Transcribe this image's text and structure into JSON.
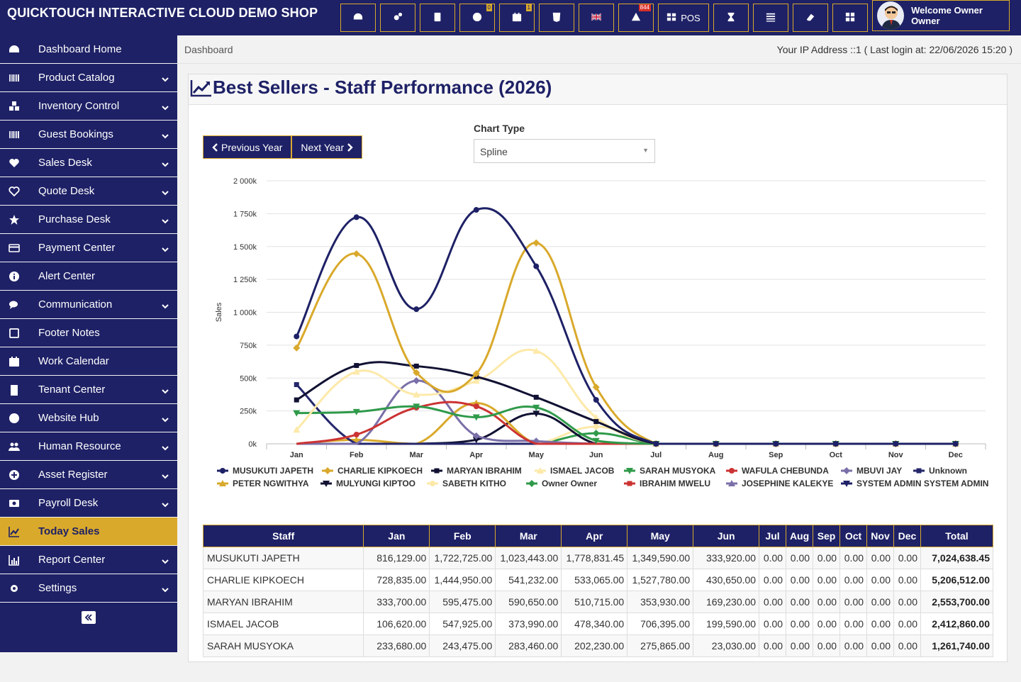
{
  "app": {
    "brand": "QUICKTOUCH INTERACTIVE CLOUD DEMO SHOP"
  },
  "topbar": {
    "buttons": [
      {
        "icon": "dashboard-icon",
        "label": "",
        "badge": ""
      },
      {
        "icon": "cogs-icon",
        "label": "",
        "badge": ""
      },
      {
        "icon": "calculator-icon",
        "label": "",
        "badge": ""
      },
      {
        "icon": "info-icon",
        "label": "",
        "badge": "0"
      },
      {
        "icon": "calendar-icon",
        "label": "",
        "badge": "1"
      },
      {
        "icon": "css3-icon",
        "label": "",
        "badge": ""
      },
      {
        "icon": "uk-flag-icon",
        "label": "",
        "badge": ""
      },
      {
        "icon": "warning-icon",
        "label": "",
        "badge": "844"
      },
      {
        "icon": "pos-grid-icon",
        "label": "POS",
        "badge": ""
      },
      {
        "icon": "hourglass-icon",
        "label": "",
        "badge": ""
      },
      {
        "icon": "list-icon",
        "label": "",
        "badge": ""
      },
      {
        "icon": "eraser-icon",
        "label": "",
        "badge": ""
      },
      {
        "icon": "windows-icon",
        "label": "",
        "badge": ""
      }
    ],
    "welcome": "Welcome Owner Owner"
  },
  "sidebar": {
    "items": [
      {
        "label": "Dashboard Home",
        "icon": "dashboard-icon",
        "chevron": false
      },
      {
        "label": "Product Catalog",
        "icon": "barcode-icon",
        "chevron": true
      },
      {
        "label": "Inventory Control",
        "icon": "cubes-icon",
        "chevron": true
      },
      {
        "label": "Guest Bookings",
        "icon": "barcode-icon",
        "chevron": true
      },
      {
        "label": "Sales Desk",
        "icon": "heart-icon",
        "chevron": true
      },
      {
        "label": "Quote Desk",
        "icon": "heart-outline-icon",
        "chevron": true
      },
      {
        "label": "Purchase Desk",
        "icon": "star-icon",
        "chevron": true
      },
      {
        "label": "Payment Center",
        "icon": "credit-card-icon",
        "chevron": true
      },
      {
        "label": "Alert Center",
        "icon": "info-circle-icon",
        "chevron": false
      },
      {
        "label": "Communication",
        "icon": "comments-icon",
        "chevron": true
      },
      {
        "label": "Footer Notes",
        "icon": "square-icon",
        "chevron": false
      },
      {
        "label": "Work Calendar",
        "icon": "calendar-icon",
        "chevron": false
      },
      {
        "label": "Tenant Center",
        "icon": "building-icon",
        "chevron": true
      },
      {
        "label": "Website Hub",
        "icon": "globe-icon",
        "chevron": true
      },
      {
        "label": "Human Resource",
        "icon": "users-icon",
        "chevron": true
      },
      {
        "label": "Asset Register",
        "icon": "plus-circle-icon",
        "chevron": true
      },
      {
        "label": "Payroll Desk",
        "icon": "money-icon",
        "chevron": true
      },
      {
        "label": "Today Sales",
        "icon": "line-chart-icon",
        "chevron": false,
        "active": true
      },
      {
        "label": "Report Center",
        "icon": "bar-chart-icon",
        "chevron": true
      },
      {
        "label": "Settings",
        "icon": "gear-icon",
        "chevron": true
      }
    ]
  },
  "breadcrumb": "Dashboard",
  "ip_info": "Your IP Address ::1 ( Last login at: 22/06/2026 15:20 )",
  "panel": {
    "title": "Best Sellers - Staff Performance (2026)",
    "prev_year": "Previous Year",
    "next_year": "Next Year",
    "chart_type_label": "Chart Type",
    "chart_type_value": "Spline"
  },
  "chart_data": {
    "type": "line",
    "ylabel": "Sales",
    "ylim": [
      0,
      2000000
    ],
    "yticks": [
      "0k",
      "250k",
      "500k",
      "750k",
      "1 000k",
      "1 250k",
      "1 500k",
      "1 750k",
      "2 000k"
    ],
    "categories": [
      "Jan",
      "Feb",
      "Mar",
      "Apr",
      "May",
      "Jun",
      "Jul",
      "Aug",
      "Sep",
      "Oct",
      "Nov",
      "Dec"
    ],
    "series": [
      {
        "name": "MUSUKUTI JAPETH",
        "color": "#1e2166",
        "marker": "circle",
        "values": [
          816129,
          1722725,
          1023443,
          1778831.45,
          1349590,
          333920,
          0,
          0,
          0,
          0,
          0,
          0
        ]
      },
      {
        "name": "CHARLIE KIPKOECH",
        "color": "#d9a92b",
        "marker": "diamond",
        "values": [
          728835,
          1444950,
          541232,
          533065,
          1527780,
          430650,
          0,
          0,
          0,
          0,
          0,
          0
        ]
      },
      {
        "name": "MARYAN IBRAHIM",
        "color": "#111133",
        "marker": "square",
        "values": [
          333700,
          595475,
          590650,
          510715,
          353930,
          169230,
          0,
          0,
          0,
          0,
          0,
          0
        ]
      },
      {
        "name": "ISMAEL JACOB",
        "color": "#fde9a9",
        "marker": "triangle",
        "values": [
          106620,
          547925,
          373990,
          478340,
          706395,
          199590,
          0,
          0,
          0,
          0,
          0,
          0
        ]
      },
      {
        "name": "SARAH MUSYOKA",
        "color": "#2f9a4a",
        "marker": "triangle-down",
        "values": [
          233680,
          243475,
          283460,
          202230,
          275865,
          23030,
          0,
          0,
          0,
          0,
          0,
          0
        ]
      },
      {
        "name": "WAFULA CHEBUNDA",
        "color": "#cc3333",
        "marker": "circle",
        "values": [
          0,
          70000,
          275000,
          285000,
          0,
          0,
          0,
          0,
          0,
          0,
          0,
          0
        ]
      },
      {
        "name": "MBUVI JAY",
        "color": "#7a6fa8",
        "marker": "diamond",
        "values": [
          0,
          0,
          480000,
          60000,
          20000,
          0,
          0,
          0,
          0,
          0,
          0,
          0
        ]
      },
      {
        "name": "Unknown",
        "color": "#25276b",
        "marker": "square",
        "values": [
          450000,
          0,
          0,
          0,
          0,
          0,
          0,
          0,
          0,
          0,
          0,
          0
        ]
      },
      {
        "name": "PETER NGWITHYA",
        "color": "#d9a92b",
        "marker": "triangle",
        "values": [
          0,
          30000,
          0,
          310000,
          0,
          0,
          0,
          0,
          0,
          0,
          0,
          0
        ]
      },
      {
        "name": "MULYUNGI KIPTOO",
        "color": "#111133",
        "marker": "triangle-down",
        "values": [
          0,
          0,
          0,
          30000,
          230000,
          0,
          0,
          0,
          0,
          0,
          0,
          0
        ]
      },
      {
        "name": "SABETH KITHO",
        "color": "#fde9a9",
        "marker": "circle",
        "values": [
          0,
          0,
          0,
          0,
          0,
          130000,
          0,
          0,
          0,
          0,
          0,
          0
        ]
      },
      {
        "name": "Owner Owner",
        "color": "#2f9a4a",
        "marker": "diamond",
        "values": [
          0,
          0,
          0,
          0,
          0,
          80000,
          0,
          0,
          0,
          0,
          0,
          0
        ]
      },
      {
        "name": "IBRAHIM MWELU",
        "color": "#cc3333",
        "marker": "square",
        "values": [
          0,
          0,
          0,
          0,
          0,
          0,
          0,
          0,
          0,
          0,
          0,
          0
        ]
      },
      {
        "name": "JOSEPHINE KALEKYE",
        "color": "#7a6fa8",
        "marker": "triangle",
        "values": [
          0,
          0,
          0,
          0,
          0,
          0,
          0,
          0,
          0,
          0,
          0,
          0
        ]
      },
      {
        "name": "SYSTEM ADMIN SYSTEM ADMIN",
        "color": "#1e2166",
        "marker": "triangle-down",
        "values": [
          0,
          0,
          0,
          0,
          0,
          0,
          0,
          0,
          0,
          0,
          0,
          0
        ]
      }
    ],
    "legend": "bottom"
  },
  "table": {
    "headers": [
      "Staff",
      "Jan",
      "Feb",
      "Mar",
      "Apr",
      "May",
      "Jun",
      "Jul",
      "Aug",
      "Sep",
      "Oct",
      "Nov",
      "Dec",
      "Total"
    ],
    "rows": [
      [
        "MUSUKUTI JAPETH",
        "816,129.00",
        "1,722,725.00",
        "1,023,443.00",
        "1,778,831.45",
        "1,349,590.00",
        "333,920.00",
        "0.00",
        "0.00",
        "0.00",
        "0.00",
        "0.00",
        "0.00",
        "7,024,638.45"
      ],
      [
        "CHARLIE KIPKOECH",
        "728,835.00",
        "1,444,950.00",
        "541,232.00",
        "533,065.00",
        "1,527,780.00",
        "430,650.00",
        "0.00",
        "0.00",
        "0.00",
        "0.00",
        "0.00",
        "0.00",
        "5,206,512.00"
      ],
      [
        "MARYAN IBRAHIM",
        "333,700.00",
        "595,475.00",
        "590,650.00",
        "510,715.00",
        "353,930.00",
        "169,230.00",
        "0.00",
        "0.00",
        "0.00",
        "0.00",
        "0.00",
        "0.00",
        "2,553,700.00"
      ],
      [
        "ISMAEL JACOB",
        "106,620.00",
        "547,925.00",
        "373,990.00",
        "478,340.00",
        "706,395.00",
        "199,590.00",
        "0.00",
        "0.00",
        "0.00",
        "0.00",
        "0.00",
        "0.00",
        "2,412,860.00"
      ],
      [
        "SARAH MUSYOKA",
        "233,680.00",
        "243,475.00",
        "283,460.00",
        "202,230.00",
        "275,865.00",
        "23,030.00",
        "0.00",
        "0.00",
        "0.00",
        "0.00",
        "0.00",
        "0.00",
        "1,261,740.00"
      ]
    ]
  }
}
